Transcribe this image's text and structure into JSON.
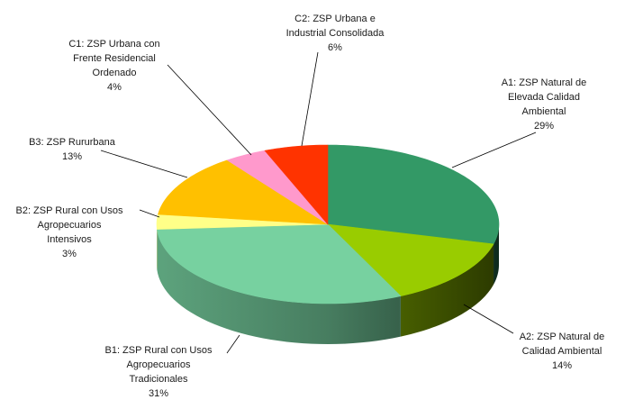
{
  "chart_data": {
    "type": "pie",
    "title": "",
    "slices": [
      {
        "lines": [
          "A1: ZSP Natural de",
          "Elevada Calidad",
          "Ambiental"
        ],
        "pct": "29%",
        "value": 29,
        "color": "#339966"
      },
      {
        "lines": [
          "A2: ZSP Natural de",
          "Calidad Ambiental"
        ],
        "pct": "14%",
        "value": 14,
        "color": "#99cc00"
      },
      {
        "lines": [
          "B1: ZSP Rural con Usos",
          "Agropecuarios",
          "Tradicionales"
        ],
        "pct": "31%",
        "value": 31,
        "color": "#77d1a0"
      },
      {
        "lines": [
          "B2: ZSP Rural con Usos",
          "Agropecuarios",
          "Intensivos"
        ],
        "pct": "3%",
        "value": 3,
        "color": "#ffff88"
      },
      {
        "lines": [
          "B3: ZSP Rururbana"
        ],
        "pct": "13%",
        "value": 13,
        "color": "#ffc000"
      },
      {
        "lines": [
          "C1: ZSP Urbana con",
          "Frente  Residencial",
          "Ordenado"
        ],
        "pct": "4%",
        "value": 4,
        "color": "#ff99cc"
      },
      {
        "lines": [
          "C2: ZSP Urbana e",
          "Industrial Consolidada"
        ],
        "pct": "6%",
        "value": 6,
        "color": "#ff3300"
      }
    ],
    "legend": "none",
    "style": "3d-pie"
  }
}
